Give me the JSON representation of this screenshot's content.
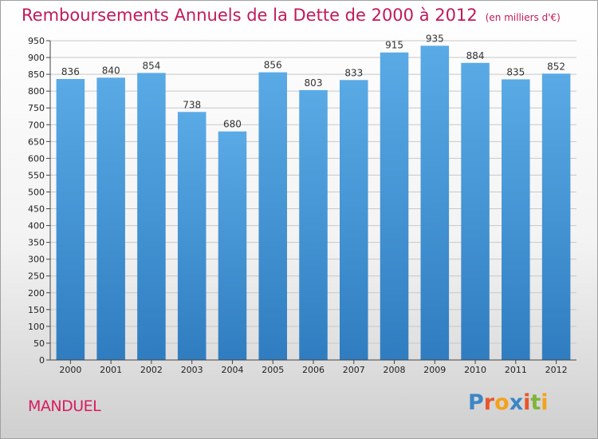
{
  "header": {
    "title": "Remboursements Annuels de la Dette de 2000 à 2012",
    "subtitle": "(en milliers d'€)"
  },
  "footer": {
    "commune": "MANDUEL",
    "logo": "Proxiti",
    "logo_letters": [
      {
        "ch": "P",
        "color": "#3d86c6"
      },
      {
        "ch": "r",
        "color": "#e8552a"
      },
      {
        "ch": "o",
        "color": "#f4a11c"
      },
      {
        "ch": "x",
        "color": "#3d86c6"
      },
      {
        "ch": "i",
        "color": "#e8552a"
      },
      {
        "ch": "t",
        "color": "#7fb539"
      },
      {
        "ch": "i",
        "color": "#f4a11c"
      }
    ]
  },
  "colors": {
    "bar_top": "#5aaae6",
    "bar_bottom": "#2f7dc0",
    "title": "#c2185b",
    "grid": "#c8c8c8"
  },
  "chart_data": {
    "type": "bar",
    "categories": [
      "2000",
      "2001",
      "2002",
      "2003",
      "2004",
      "2005",
      "2006",
      "2007",
      "2008",
      "2009",
      "2010",
      "2011",
      "2012"
    ],
    "values": [
      836,
      840,
      854,
      738,
      680,
      856,
      803,
      833,
      915,
      935,
      884,
      835,
      852
    ],
    "title": "Remboursements Annuels de la Dette de 2000 à 2012",
    "subtitle": "(en milliers d'€)",
    "xlabel": "",
    "ylabel": "",
    "ylim": [
      0,
      950
    ],
    "ytick_step": 50,
    "grid": true,
    "legend": "none"
  }
}
